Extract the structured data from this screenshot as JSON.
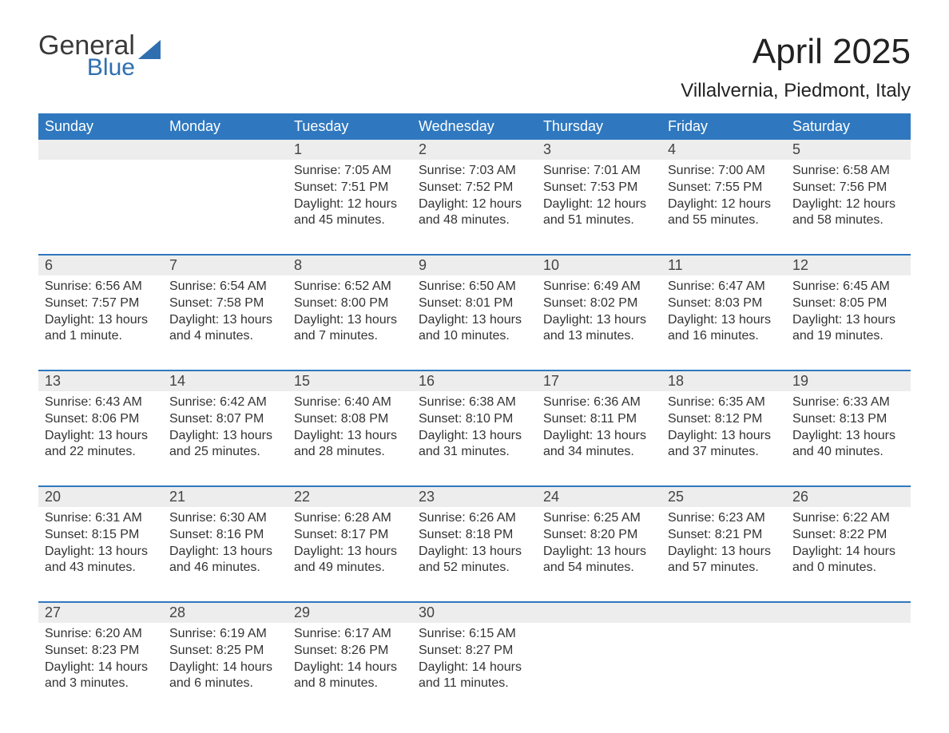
{
  "logo": {
    "line1": "General",
    "line2": "Blue"
  },
  "title": "April 2025",
  "location": "Villalvernia, Piedmont, Italy",
  "weekdays": [
    "Sunday",
    "Monday",
    "Tuesday",
    "Wednesday",
    "Thursday",
    "Friday",
    "Saturday"
  ],
  "colors": {
    "header_bg": "#2f78bf",
    "header_text": "#ffffff",
    "daynum_bg": "#ededed",
    "border": "#2f78bf",
    "text": "#333333",
    "logo_blue": "#2f6fb0"
  },
  "weeks": [
    [
      {
        "num": "",
        "lines": []
      },
      {
        "num": "",
        "lines": []
      },
      {
        "num": "1",
        "lines": [
          "Sunrise: 7:05 AM",
          "Sunset: 7:51 PM",
          "Daylight: 12 hours and 45 minutes."
        ]
      },
      {
        "num": "2",
        "lines": [
          "Sunrise: 7:03 AM",
          "Sunset: 7:52 PM",
          "Daylight: 12 hours and 48 minutes."
        ]
      },
      {
        "num": "3",
        "lines": [
          "Sunrise: 7:01 AM",
          "Sunset: 7:53 PM",
          "Daylight: 12 hours and 51 minutes."
        ]
      },
      {
        "num": "4",
        "lines": [
          "Sunrise: 7:00 AM",
          "Sunset: 7:55 PM",
          "Daylight: 12 hours and 55 minutes."
        ]
      },
      {
        "num": "5",
        "lines": [
          "Sunrise: 6:58 AM",
          "Sunset: 7:56 PM",
          "Daylight: 12 hours and 58 minutes."
        ]
      }
    ],
    [
      {
        "num": "6",
        "lines": [
          "Sunrise: 6:56 AM",
          "Sunset: 7:57 PM",
          "Daylight: 13 hours and 1 minute."
        ]
      },
      {
        "num": "7",
        "lines": [
          "Sunrise: 6:54 AM",
          "Sunset: 7:58 PM",
          "Daylight: 13 hours and 4 minutes."
        ]
      },
      {
        "num": "8",
        "lines": [
          "Sunrise: 6:52 AM",
          "Sunset: 8:00 PM",
          "Daylight: 13 hours and 7 minutes."
        ]
      },
      {
        "num": "9",
        "lines": [
          "Sunrise: 6:50 AM",
          "Sunset: 8:01 PM",
          "Daylight: 13 hours and 10 minutes."
        ]
      },
      {
        "num": "10",
        "lines": [
          "Sunrise: 6:49 AM",
          "Sunset: 8:02 PM",
          "Daylight: 13 hours and 13 minutes."
        ]
      },
      {
        "num": "11",
        "lines": [
          "Sunrise: 6:47 AM",
          "Sunset: 8:03 PM",
          "Daylight: 13 hours and 16 minutes."
        ]
      },
      {
        "num": "12",
        "lines": [
          "Sunrise: 6:45 AM",
          "Sunset: 8:05 PM",
          "Daylight: 13 hours and 19 minutes."
        ]
      }
    ],
    [
      {
        "num": "13",
        "lines": [
          "Sunrise: 6:43 AM",
          "Sunset: 8:06 PM",
          "Daylight: 13 hours and 22 minutes."
        ]
      },
      {
        "num": "14",
        "lines": [
          "Sunrise: 6:42 AM",
          "Sunset: 8:07 PM",
          "Daylight: 13 hours and 25 minutes."
        ]
      },
      {
        "num": "15",
        "lines": [
          "Sunrise: 6:40 AM",
          "Sunset: 8:08 PM",
          "Daylight: 13 hours and 28 minutes."
        ]
      },
      {
        "num": "16",
        "lines": [
          "Sunrise: 6:38 AM",
          "Sunset: 8:10 PM",
          "Daylight: 13 hours and 31 minutes."
        ]
      },
      {
        "num": "17",
        "lines": [
          "Sunrise: 6:36 AM",
          "Sunset: 8:11 PM",
          "Daylight: 13 hours and 34 minutes."
        ]
      },
      {
        "num": "18",
        "lines": [
          "Sunrise: 6:35 AM",
          "Sunset: 8:12 PM",
          "Daylight: 13 hours and 37 minutes."
        ]
      },
      {
        "num": "19",
        "lines": [
          "Sunrise: 6:33 AM",
          "Sunset: 8:13 PM",
          "Daylight: 13 hours and 40 minutes."
        ]
      }
    ],
    [
      {
        "num": "20",
        "lines": [
          "Sunrise: 6:31 AM",
          "Sunset: 8:15 PM",
          "Daylight: 13 hours and 43 minutes."
        ]
      },
      {
        "num": "21",
        "lines": [
          "Sunrise: 6:30 AM",
          "Sunset: 8:16 PM",
          "Daylight: 13 hours and 46 minutes."
        ]
      },
      {
        "num": "22",
        "lines": [
          "Sunrise: 6:28 AM",
          "Sunset: 8:17 PM",
          "Daylight: 13 hours and 49 minutes."
        ]
      },
      {
        "num": "23",
        "lines": [
          "Sunrise: 6:26 AM",
          "Sunset: 8:18 PM",
          "Daylight: 13 hours and 52 minutes."
        ]
      },
      {
        "num": "24",
        "lines": [
          "Sunrise: 6:25 AM",
          "Sunset: 8:20 PM",
          "Daylight: 13 hours and 54 minutes."
        ]
      },
      {
        "num": "25",
        "lines": [
          "Sunrise: 6:23 AM",
          "Sunset: 8:21 PM",
          "Daylight: 13 hours and 57 minutes."
        ]
      },
      {
        "num": "26",
        "lines": [
          "Sunrise: 6:22 AM",
          "Sunset: 8:22 PM",
          "Daylight: 14 hours and 0 minutes."
        ]
      }
    ],
    [
      {
        "num": "27",
        "lines": [
          "Sunrise: 6:20 AM",
          "Sunset: 8:23 PM",
          "Daylight: 14 hours and 3 minutes."
        ]
      },
      {
        "num": "28",
        "lines": [
          "Sunrise: 6:19 AM",
          "Sunset: 8:25 PM",
          "Daylight: 14 hours and 6 minutes."
        ]
      },
      {
        "num": "29",
        "lines": [
          "Sunrise: 6:17 AM",
          "Sunset: 8:26 PM",
          "Daylight: 14 hours and 8 minutes."
        ]
      },
      {
        "num": "30",
        "lines": [
          "Sunrise: 6:15 AM",
          "Sunset: 8:27 PM",
          "Daylight: 14 hours and 11 minutes."
        ]
      },
      {
        "num": "",
        "lines": []
      },
      {
        "num": "",
        "lines": []
      },
      {
        "num": "",
        "lines": []
      }
    ]
  ]
}
